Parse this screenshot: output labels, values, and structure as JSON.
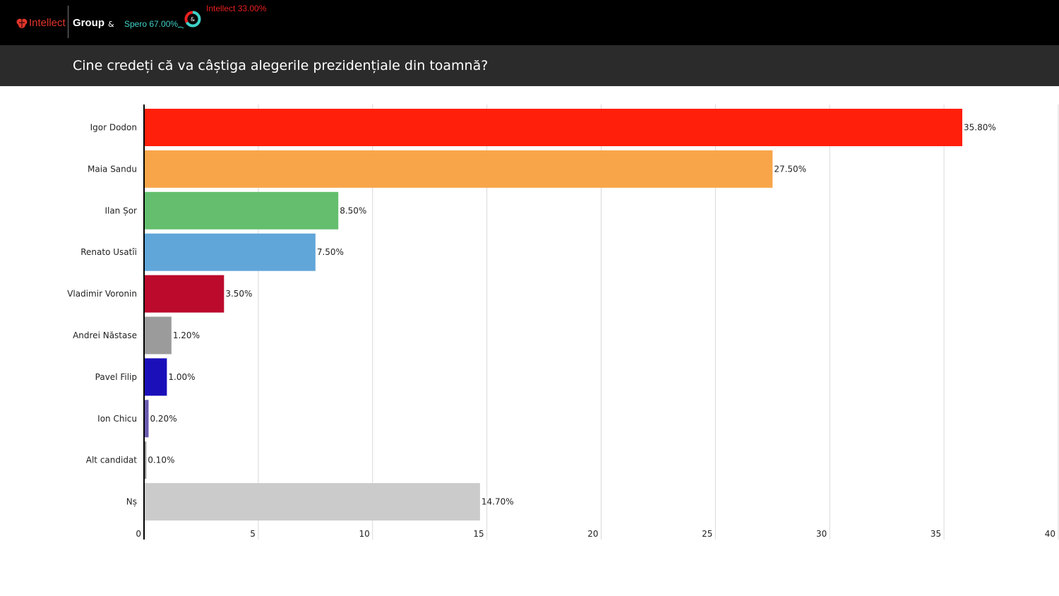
{
  "header": {
    "brand_name": "Intellect",
    "group_label": "Group",
    "ampersand": "&",
    "donut_center_label": "&",
    "brand_color": "#e0342a",
    "accent_color": "#3fd1c6",
    "donut_legend": [
      {
        "label": "Spero 67.00%",
        "value": 67.0,
        "color": "#3fd1c6"
      },
      {
        "label": "Intellect 33.00%",
        "value": 33.0,
        "color": "#e8201f"
      }
    ]
  },
  "title": "Cine credeți că va câștiga alegerile prezidențiale din toamnă?",
  "chart_data": {
    "type": "bar",
    "orientation": "horizontal",
    "title": "Cine credeți că va câștiga alegerile prezidențiale din toamnă?",
    "categories": [
      "Igor Dodon",
      "Maia Sandu",
      "Ilan Șor",
      "Renato Usatîi",
      "Vladimir Voronin",
      "Andrei Năstase",
      "Pavel Filip",
      "Ion Chicu",
      "Alt candidat",
      "Nș"
    ],
    "values": [
      35.8,
      27.5,
      8.5,
      7.5,
      3.5,
      1.2,
      1.0,
      0.2,
      0.1,
      14.7
    ],
    "value_labels": [
      "35.80%",
      "27.50%",
      "8.50%",
      "7.50%",
      "3.50%",
      "1.20%",
      "1.00%",
      "0.20%",
      "0.10%",
      "14.70%"
    ],
    "colors": [
      "#ff1f0a",
      "#f8a54a",
      "#64be6e",
      "#60a6d9",
      "#bc0a2d",
      "#9b9b9b",
      "#1b0fba",
      "#6a5bae",
      "#8f8f8f",
      "#cbcbcb"
    ],
    "xlim": [
      0,
      40
    ],
    "xticks": [
      0,
      5,
      10,
      15,
      20,
      25,
      30,
      35,
      40
    ],
    "xlabel": "",
    "ylabel": "",
    "grid": true,
    "legend": "none"
  }
}
